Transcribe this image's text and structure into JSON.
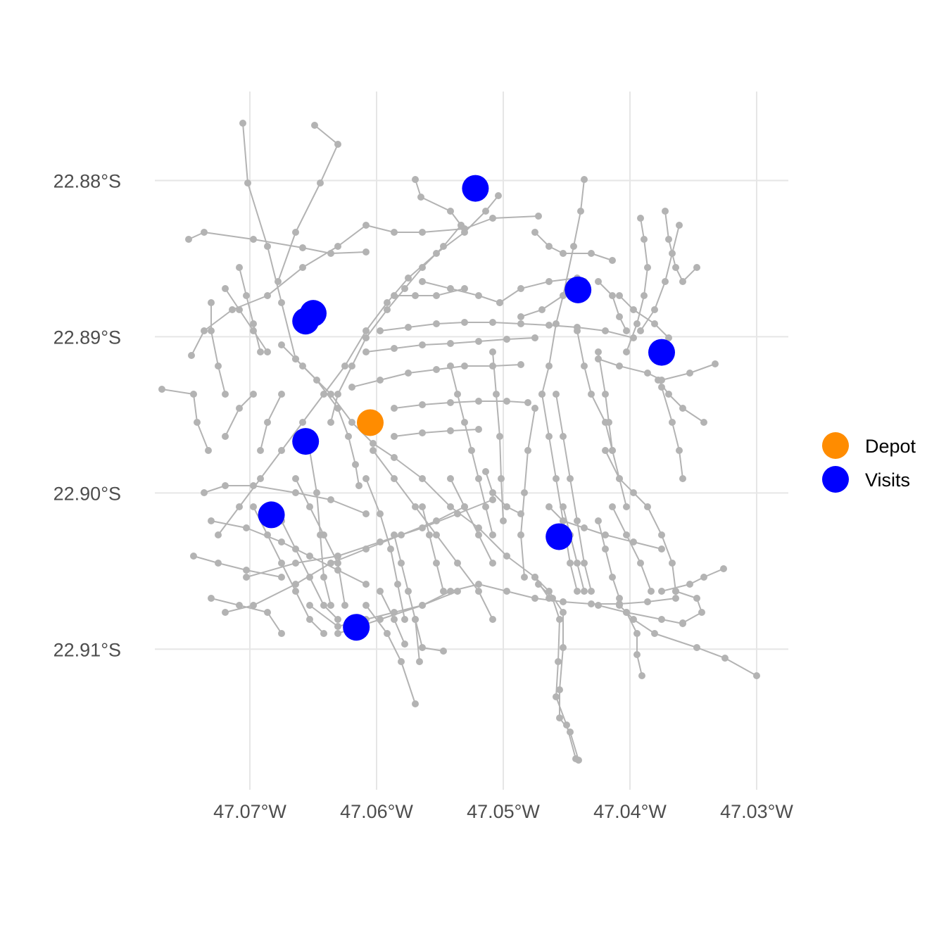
{
  "chart_data": {
    "type": "scatter",
    "title": "",
    "xlabel": "",
    "ylabel": "",
    "xlim": [
      -47.0775,
      -47.0275
    ],
    "ylim": [
      -22.919,
      -22.8743
    ],
    "x_ticks": [
      -47.07,
      -47.06,
      -47.05,
      -47.04,
      -47.03
    ],
    "x_tick_labels": [
      "47.07°W",
      "47.06°W",
      "47.05°W",
      "47.04°W",
      "47.03°W"
    ],
    "y_ticks": [
      -22.88,
      -22.89,
      -22.9,
      -22.91
    ],
    "y_tick_labels": [
      "22.88°S",
      "22.89°S",
      "22.90°S",
      "22.91°S"
    ],
    "grid": true,
    "legend_placement": "right",
    "legend": [
      {
        "label": "Depot",
        "color": "#ff8c00"
      },
      {
        "label": "Visits",
        "color": "#0000ff"
      }
    ],
    "road_color": "#b3b3b3",
    "series": [
      {
        "name": "Depot",
        "color": "#ff8c00",
        "points": [
          [
            -47.0605,
            -22.8955
          ]
        ]
      },
      {
        "name": "Visits",
        "color": "#0000ff",
        "points": [
          [
            -47.0522,
            -22.8805
          ],
          [
            -47.0441,
            -22.887
          ],
          [
            -47.0375,
            -22.891
          ],
          [
            -47.065,
            -22.8885
          ],
          [
            -47.0656,
            -22.889
          ],
          [
            -47.0656,
            -22.8967
          ],
          [
            -47.0683,
            -22.9014
          ],
          [
            -47.0456,
            -22.9028
          ],
          [
            -47.0616,
            -22.9086
          ]
        ]
      }
    ]
  }
}
